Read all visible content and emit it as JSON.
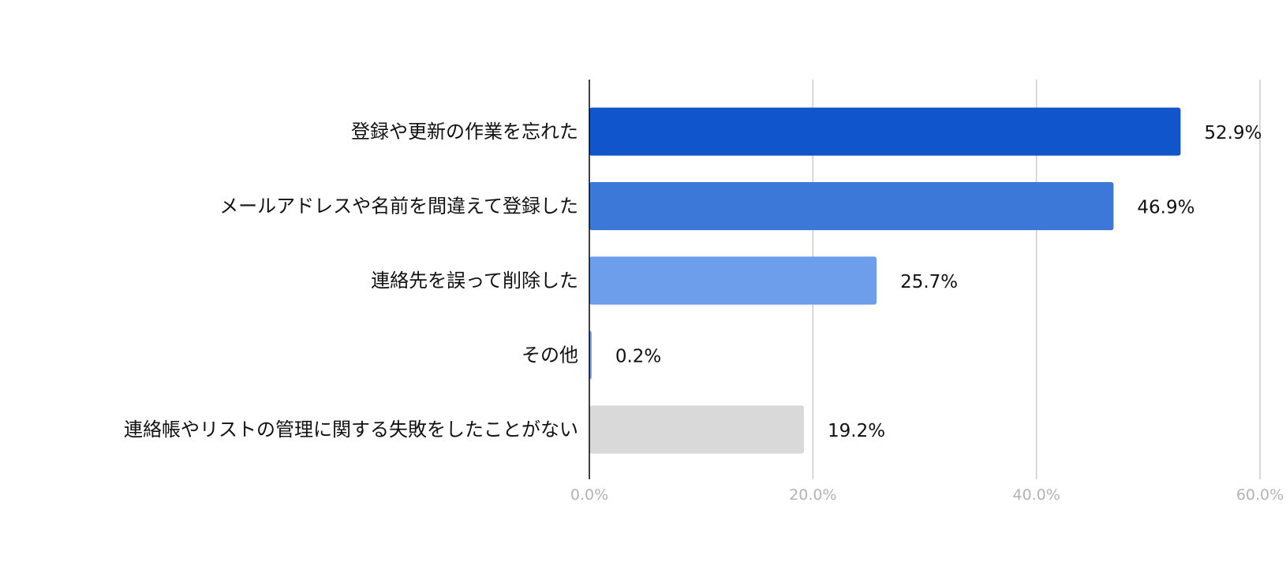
{
  "chart_data": {
    "type": "bar",
    "orientation": "horizontal",
    "categories": [
      "登録や更新の作業を忘れた",
      "メールアドレスや名前を間違えて登録した",
      "連絡先を誤って削除した",
      "その他",
      "連絡帳やリストの管理に関する失敗をしたことがない"
    ],
    "values": [
      52.9,
      46.9,
      25.7,
      0.2,
      19.2
    ],
    "value_labels": [
      "52.9%",
      "46.9%",
      "25.7%",
      "0.2%",
      "19.2%"
    ],
    "bar_colors": [
      "#1155cc",
      "#3c78d8",
      "#6d9eeb",
      "#6d9eeb",
      "#d9d9d9"
    ],
    "xlim": [
      0,
      60
    ],
    "x_ticks": [
      0,
      20,
      40,
      60
    ],
    "x_tick_labels": [
      "0.0%",
      "20.0%",
      "40.0%",
      "60.0%"
    ],
    "grid": true,
    "gridline_color": "#cccccc",
    "axis_color": "#000000",
    "legend": "none"
  }
}
